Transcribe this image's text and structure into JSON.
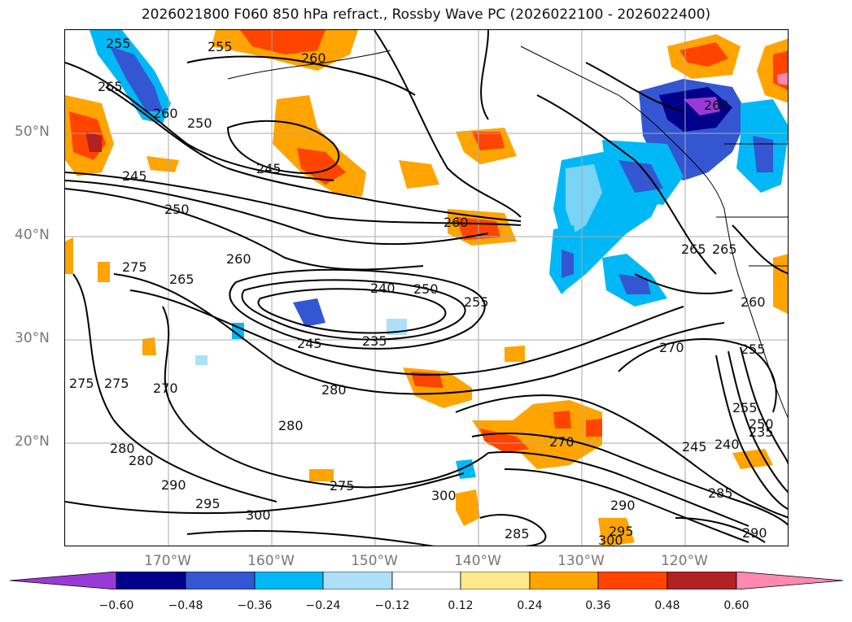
{
  "title": "2026021800 F060 850 hPa refract., Rossby Wave PC (2026022100 - 2026022400)",
  "latitude_labels": [
    "50°N",
    "40°N",
    "30°N",
    "20°N"
  ],
  "longitude_labels": [
    "170°W",
    "160°W",
    "150°W",
    "140°W",
    "130°W",
    "120°W"
  ],
  "colorbar": {
    "ticks": [
      "−0.60",
      "−0.48",
      "−0.36",
      "−0.24",
      "−0.12",
      "0.12",
      "0.24",
      "0.36",
      "0.48",
      "0.60"
    ],
    "colors": [
      "#9a3ad6",
      "#00008c",
      "#3456d2",
      "#00b8f5",
      "#ade0f8",
      "#ffffff",
      "#ffe98a",
      "#ffa400",
      "#ff4400",
      "#b22222",
      "#ff88b0"
    ]
  },
  "contour_labels": [
    "255",
    "255",
    "260",
    "265",
    "260",
    "250",
    "245",
    "245",
    "250",
    "260",
    "275",
    "265",
    "260",
    "240",
    "250",
    "255",
    "245",
    "235",
    "270",
    "275",
    "275",
    "270",
    "280",
    "280",
    "280",
    "280",
    "270",
    "290",
    "295",
    "275",
    "300",
    "300",
    "285",
    "290",
    "295",
    "300",
    "265",
    "265",
    "260",
    "255",
    "255",
    "250",
    "245",
    "240",
    "235",
    "285",
    "290",
    "260"
  ]
}
